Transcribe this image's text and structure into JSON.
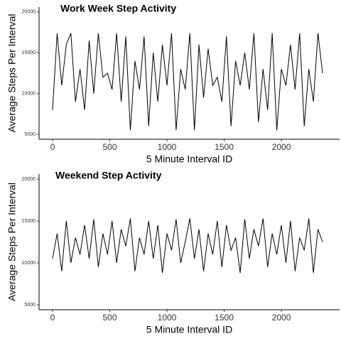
{
  "chart_data": [
    {
      "type": "line",
      "title": "Work Week Step Activity",
      "x_label": "5 Minute Interval ID",
      "y_label": "Average Steps Per Interval",
      "x": [
        0,
        40,
        80,
        120,
        160,
        200,
        240,
        280,
        320,
        360,
        400,
        440,
        480,
        520,
        560,
        600,
        640,
        680,
        720,
        760,
        800,
        840,
        880,
        920,
        960,
        1000,
        1040,
        1080,
        1120,
        1160,
        1200,
        1240,
        1280,
        1320,
        1360,
        1400,
        1440,
        1480,
        1520,
        1560,
        1600,
        1640,
        1680,
        1720,
        1760,
        1800,
        1840,
        1880,
        1920,
        1960,
        2000,
        2040,
        2080,
        2120,
        2160,
        2200,
        2240,
        2280,
        2320,
        2360
      ],
      "series": [
        {
          "name": "Work Week",
          "color": "#000000",
          "values": [
            8000,
            17400,
            11000,
            16000,
            17400,
            9000,
            13000,
            8000,
            16500,
            10000,
            17400,
            12000,
            12500,
            10500,
            17400,
            9000,
            17000,
            5500,
            14000,
            10500,
            17000,
            6000,
            15000,
            9000,
            16000,
            11000,
            17400,
            5500,
            13000,
            10500,
            17400,
            5500,
            16000,
            9500,
            15500,
            11000,
            12000,
            9000,
            17000,
            6000,
            14000,
            11000,
            15000,
            10500,
            17400,
            6500,
            13000,
            8000,
            17400,
            5500,
            13000,
            11000,
            16000,
            10500,
            17400,
            6000,
            13000,
            9000,
            17400,
            12500
          ]
        }
      ],
      "xlim": [
        -118,
        2509
      ],
      "xticks": [
        0,
        500,
        1000,
        1500,
        2000
      ],
      "ylim": [
        4400,
        20600
      ],
      "yticks": [
        5000,
        10000,
        15000,
        20000
      ]
    },
    {
      "type": "line",
      "title": "Weekend Step Activity",
      "x_label": "5 Minute Interval ID",
      "y_label": "Average Steps Per Interval",
      "x": [
        0,
        40,
        80,
        120,
        160,
        200,
        240,
        280,
        320,
        360,
        400,
        440,
        480,
        520,
        560,
        600,
        640,
        680,
        720,
        760,
        800,
        840,
        880,
        920,
        960,
        1000,
        1040,
        1080,
        1120,
        1160,
        1200,
        1240,
        1280,
        1320,
        1360,
        1400,
        1440,
        1480,
        1520,
        1560,
        1600,
        1640,
        1680,
        1720,
        1760,
        1800,
        1840,
        1880,
        1920,
        1960,
        2000,
        2040,
        2080,
        2120,
        2160,
        2200,
        2240,
        2280,
        2320,
        2360
      ],
      "series": [
        {
          "name": "Weekend",
          "color": "#000000",
          "values": [
            10500,
            13500,
            9000,
            15000,
            10000,
            13000,
            11000,
            14500,
            10500,
            15200,
            9500,
            13500,
            11000,
            15000,
            10000,
            14000,
            12000,
            15300,
            9000,
            13000,
            11000,
            15000,
            10500,
            14500,
            8800,
            13500,
            11500,
            15200,
            10000,
            12500,
            15300,
            10500,
            14000,
            9000,
            13500,
            11000,
            15000,
            9500,
            14500,
            11500,
            13000,
            8800,
            15200,
            10500,
            14000,
            12000,
            15300,
            9500,
            13500,
            11000,
            14500,
            10000,
            15000,
            9000,
            13000,
            11500,
            15300,
            8800,
            14000,
            12500
          ]
        }
      ],
      "xlim": [
        -118,
        2509
      ],
      "xticks": [
        0,
        500,
        1000,
        1500,
        2000
      ],
      "ylim": [
        4400,
        20600
      ],
      "yticks": [
        5000,
        10000,
        15000,
        20000
      ]
    }
  ]
}
